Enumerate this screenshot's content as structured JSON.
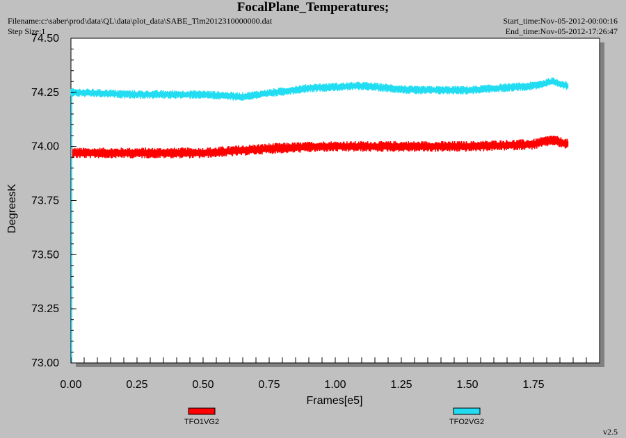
{
  "header": {
    "title": "FocalPlane_Temperatures;",
    "filename": "Filename:c:\\saber\\prod\\data\\QL\\data\\plot_data\\SABE_Tlm2012310000000.dat",
    "step_size": "Step Size:1",
    "start_time": "Start_time:Nov-05-2012-00:00:16",
    "end_time": "End_time:Nov-05-2012-17:26:47"
  },
  "version": "v2.5",
  "colors": {
    "background": "#c0c0c0",
    "plot_area": "#ffffff",
    "series1": "#ff0000",
    "series2": "#22ddf2"
  },
  "chart_data": {
    "type": "line",
    "title": "FocalPlane_Temperatures;",
    "xlabel": "Frames[e5]",
    "ylabel": "DegreesK",
    "xlim": [
      0.0,
      2.0
    ],
    "ylim": [
      73.0,
      74.5
    ],
    "x_ticks": [
      "0.00",
      "0.25",
      "0.50",
      "0.75",
      "1.00",
      "1.25",
      "1.50",
      "1.75"
    ],
    "y_ticks": [
      "73.00",
      "73.25",
      "73.50",
      "73.75",
      "74.00",
      "74.25",
      "74.50"
    ],
    "grid": false,
    "legend_position": "bottom",
    "x_end": 1.88,
    "series": [
      {
        "name": "TFO1VG2",
        "color": "#ff0000",
        "noise_band": 0.025,
        "points": [
          [
            0.0,
            73.97
          ],
          [
            0.25,
            73.97
          ],
          [
            0.5,
            73.97
          ],
          [
            0.75,
            73.99
          ],
          [
            0.95,
            74.0
          ],
          [
            1.25,
            74.0
          ],
          [
            1.5,
            74.0
          ],
          [
            1.75,
            74.01
          ],
          [
            1.82,
            74.03
          ],
          [
            1.88,
            74.01
          ]
        ]
      },
      {
        "name": "TFO2VG2",
        "color": "#22ddf2",
        "noise_band": 0.02,
        "points": [
          [
            0.0,
            74.25
          ],
          [
            0.25,
            74.24
          ],
          [
            0.5,
            74.24
          ],
          [
            0.65,
            74.23
          ],
          [
            0.9,
            74.27
          ],
          [
            1.1,
            74.28
          ],
          [
            1.3,
            74.26
          ],
          [
            1.5,
            74.26
          ],
          [
            1.75,
            74.28
          ],
          [
            1.82,
            74.3
          ],
          [
            1.88,
            74.28
          ]
        ]
      }
    ]
  }
}
